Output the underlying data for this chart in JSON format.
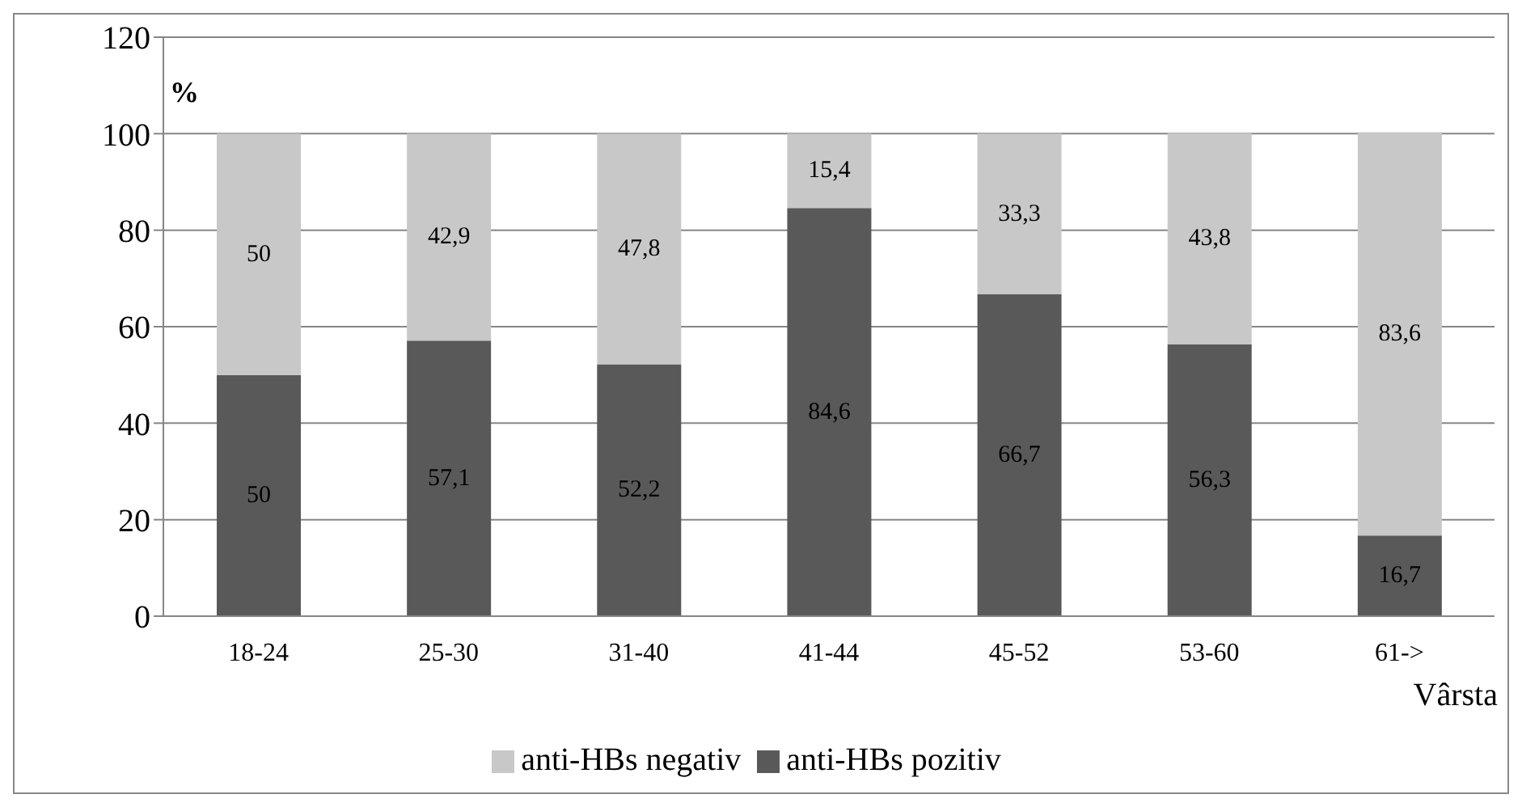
{
  "chart_data": {
    "type": "bar",
    "stacked": true,
    "ylabel": "%",
    "xlabel": "Vârsta",
    "categories": [
      "18-24",
      "25-30",
      "31-40",
      "41-44",
      "45-52",
      "53-60",
      "61->"
    ],
    "series": [
      {
        "name": "anti-HBs pozitiv",
        "color": "#595959",
        "values": [
          50,
          57.1,
          52.2,
          84.6,
          66.7,
          56.3,
          16.7
        ],
        "value_labels": [
          "50",
          "57,1",
          "52,2",
          "84,6",
          "66,7",
          "56,3",
          "16,7"
        ]
      },
      {
        "name": "anti-HBs negativ",
        "color": "#c8c8c8",
        "values": [
          50,
          42.9,
          47.8,
          15.4,
          33.3,
          43.8,
          83.6
        ],
        "value_labels": [
          "50",
          "42,9",
          "47,8",
          "15,4",
          "33,3",
          "43,8",
          "83,6"
        ]
      }
    ],
    "ylim": [
      0,
      120
    ],
    "yticks": [
      0,
      20,
      40,
      60,
      80,
      100,
      120
    ],
    "grid": "y",
    "legend": "bottom"
  }
}
